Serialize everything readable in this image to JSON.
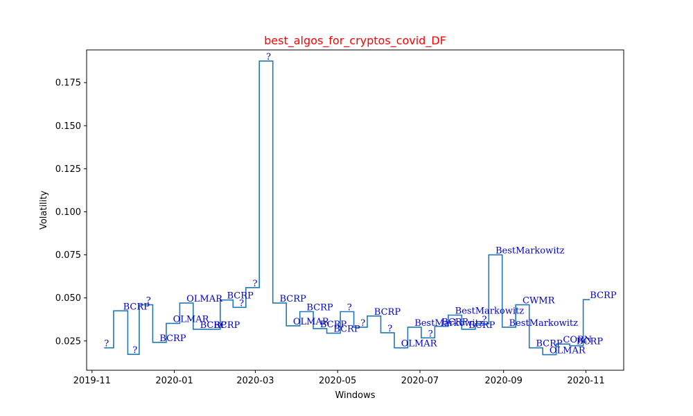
{
  "chart_data": {
    "type": "line",
    "title": "best_algos_for_cryptos_covid_DF",
    "xlabel": "Windows",
    "ylabel": "Volatility",
    "colors": {
      "title": "#ff0000",
      "line": "#1f77b4",
      "annotation": "#0000cc",
      "frame": "#000000"
    },
    "grid": false,
    "legend": "none",
    "drawstyle": "steps-mid",
    "xlim": [
      "2019-10-28",
      "2020-11-29"
    ],
    "ylim": [
      0.008,
      0.194
    ],
    "x_ticks": [
      "2019-11-01",
      "2020-01-01",
      "2020-03-01",
      "2020-05-01",
      "2020-07-01",
      "2020-09-01",
      "2020-11-01"
    ],
    "x_tick_labels": [
      "2019-11",
      "2020-01",
      "2020-03",
      "2020-05",
      "2020-07",
      "2020-09",
      "2020-11"
    ],
    "y_ticks": [
      0.025,
      0.05,
      0.075,
      0.1,
      0.125,
      0.15,
      0.175
    ],
    "y_tick_labels": [
      "0.025",
      "0.050",
      "0.075",
      "0.100",
      "0.125",
      "0.150",
      "0.175"
    ],
    "points": [
      {
        "x": "2019-11-10",
        "y": 0.021,
        "label": "?"
      },
      {
        "x": "2019-11-24",
        "y": 0.0425,
        "label": "BCRP"
      },
      {
        "x": "2019-12-01",
        "y": 0.0172,
        "label": "?"
      },
      {
        "x": "2019-12-11",
        "y": 0.046,
        "label": "?"
      },
      {
        "x": "2019-12-21",
        "y": 0.0242,
        "label": "BCRP"
      },
      {
        "x": "2019-12-31",
        "y": 0.0352,
        "label": "OLMAR"
      },
      {
        "x": "2020-01-10",
        "y": 0.047,
        "label": "OLMAR"
      },
      {
        "x": "2020-01-20",
        "y": 0.0318,
        "label": "BCRP"
      },
      {
        "x": "2020-01-30",
        "y": 0.0318,
        "label": "BCRP"
      },
      {
        "x": "2020-02-09",
        "y": 0.0488,
        "label": "BCRP"
      },
      {
        "x": "2020-02-18",
        "y": 0.0445,
        "label": "?"
      },
      {
        "x": "2020-02-28",
        "y": 0.056,
        "label": "?"
      },
      {
        "x": "2020-03-09",
        "y": 0.1875,
        "label": "?"
      },
      {
        "x": "2020-03-19",
        "y": 0.047,
        "label": "BCRP"
      },
      {
        "x": "2020-03-29",
        "y": 0.0338,
        "label": "OLMAR"
      },
      {
        "x": "2020-04-08",
        "y": 0.042,
        "label": "BCRP"
      },
      {
        "x": "2020-04-18",
        "y": 0.0322,
        "label": "BCRP"
      },
      {
        "x": "2020-04-28",
        "y": 0.0295,
        "label": "BCRP"
      },
      {
        "x": "2020-05-08",
        "y": 0.042,
        "label": "?"
      },
      {
        "x": "2020-05-18",
        "y": 0.033,
        "label": "?"
      },
      {
        "x": "2020-05-28",
        "y": 0.0395,
        "label": "BCRP"
      },
      {
        "x": "2020-06-07",
        "y": 0.0298,
        "label": "?"
      },
      {
        "x": "2020-06-17",
        "y": 0.021,
        "label": "OLMAR"
      },
      {
        "x": "2020-06-27",
        "y": 0.033,
        "label": "BestMarkowitz"
      },
      {
        "x": "2020-07-07",
        "y": 0.0268,
        "label": "?"
      },
      {
        "x": "2020-07-17",
        "y": 0.0335,
        "label": "BCRP"
      },
      {
        "x": "2020-07-27",
        "y": 0.04,
        "label": "BestMarkowitz"
      },
      {
        "x": "2020-08-06",
        "y": 0.0318,
        "label": "BCRP"
      },
      {
        "x": "2020-08-16",
        "y": 0.035,
        "label": "?"
      },
      {
        "x": "2020-08-26",
        "y": 0.075,
        "label": "BestMarkowitz"
      },
      {
        "x": "2020-09-05",
        "y": 0.033,
        "label": "BestMarkowitz"
      },
      {
        "x": "2020-09-15",
        "y": 0.046,
        "label": "CWMR"
      },
      {
        "x": "2020-09-25",
        "y": 0.021,
        "label": "BCRP"
      },
      {
        "x": "2020-10-05",
        "y": 0.017,
        "label": "OLMAR"
      },
      {
        "x": "2020-10-15",
        "y": 0.0232,
        "label": "CORN"
      },
      {
        "x": "2020-10-25",
        "y": 0.0222,
        "label": "BCRP"
      },
      {
        "x": "2020-11-04",
        "y": 0.049,
        "label": "BCRP"
      }
    ]
  }
}
